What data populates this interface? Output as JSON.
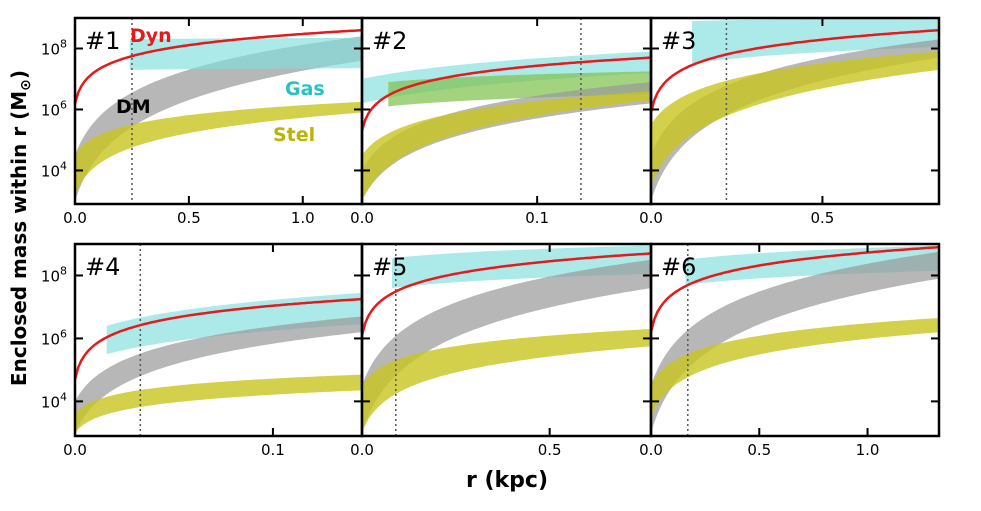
{
  "figure": {
    "ylabel": "Enclosed mass within r (M",
    "ylabel_sub": "⊙",
    "ylabel_close": ")",
    "xlabel": "r (kpc)"
  },
  "colors": {
    "dyn": "#e41a1c",
    "dm": "#999999",
    "gas": "#7fdedd",
    "stel": "#c8c41e",
    "gas_green": "#7dc04a",
    "frame": "#000000"
  },
  "legend": {
    "dyn": "Dyn",
    "dm": "DM",
    "gas": "Gas",
    "stel": "Stel"
  },
  "chart_data": [
    {
      "type": "area",
      "panel": "#1",
      "xlim": [
        0,
        1.26
      ],
      "ylim_log10": [
        2.9,
        9.0
      ],
      "xticks": [
        0.0,
        0.5,
        1.0
      ],
      "xtick_labels": [
        "0.0",
        "0.5",
        "1.0"
      ],
      "yticks_log10": [
        4,
        6,
        8
      ],
      "ytick_labels": [
        "10",
        "10",
        "10"
      ],
      "ytick_exp": [
        "4",
        "6",
        "8"
      ],
      "vline": 0.25,
      "series": [
        {
          "name": "Dyn",
          "kind": "line",
          "log_lo": 6.2,
          "log_hi": 8.6,
          "start": 0.0
        },
        {
          "name": "DM",
          "kind": "band",
          "lo_start": 3.0,
          "lo_end": 7.6,
          "hi_start": 4.5,
          "hi_end": 8.4,
          "start": 0.0,
          "k": 0.05
        },
        {
          "name": "Gas",
          "kind": "band",
          "lo_start": 7.3,
          "lo_end": 7.35,
          "hi_start": 8.3,
          "hi_end": 8.35,
          "start": 0.24,
          "k": 0.3
        },
        {
          "name": "Stel",
          "kind": "band",
          "lo_start": 3.2,
          "lo_end": 5.9,
          "hi_start": 4.5,
          "hi_end": 6.25,
          "start": 0.0,
          "k": 0.03
        }
      ]
    },
    {
      "type": "area",
      "panel": "#2",
      "xlim": [
        0,
        0.165
      ],
      "ylim_log10": [
        2.9,
        9.0
      ],
      "xticks": [
        0.0,
        0.1
      ],
      "xtick_labels": [
        "0.0",
        "0.1"
      ],
      "yticks_log10": [
        4,
        6,
        8
      ],
      "ytick_labels": [
        "10",
        "10",
        "10"
      ],
      "ytick_exp": [
        "4",
        "6",
        "8"
      ],
      "vline": 0.125,
      "series": [
        {
          "name": "Dyn",
          "kind": "line",
          "log_lo": 5.3,
          "log_hi": 7.7,
          "start": 0.0
        },
        {
          "name": "Gas",
          "kind": "band",
          "lo_start": 6.2,
          "lo_end": 7.2,
          "hi_start": 7.0,
          "hi_end": 7.9,
          "start": 0.0,
          "k": 0.3
        },
        {
          "name": "Gas (green)",
          "kind": "band",
          "lo_start": 6.1,
          "lo_end": 6.5,
          "hi_start": 6.9,
          "hi_end": 7.25,
          "start": 0.015,
          "k": 0.3
        },
        {
          "name": "DM",
          "kind": "band",
          "lo_start": 3.0,
          "lo_end": 6.2,
          "hi_start": 4.0,
          "hi_end": 6.9,
          "start": 0.0,
          "k": 0.05
        },
        {
          "name": "Stel",
          "kind": "band",
          "lo_start": 3.0,
          "lo_end": 6.3,
          "hi_start": 4.5,
          "hi_end": 6.6,
          "start": 0.0,
          "k": 0.05
        }
      ]
    },
    {
      "type": "area",
      "panel": "#3",
      "xlim": [
        0,
        0.84
      ],
      "ylim_log10": [
        2.9,
        9.0
      ],
      "xticks": [
        0.0,
        0.5
      ],
      "xtick_labels": [
        "0.0",
        "0.5"
      ],
      "yticks_log10": [
        4,
        6,
        8
      ],
      "ytick_labels": [
        "10",
        "10",
        "10"
      ],
      "ytick_exp": [
        "4",
        "6",
        "8"
      ],
      "vline": 0.22,
      "series": [
        {
          "name": "Dyn",
          "kind": "line",
          "log_lo": 5.9,
          "log_hi": 8.6,
          "start": 0.0
        },
        {
          "name": "Gas",
          "kind": "band",
          "lo_start": 7.5,
          "lo_end": 8.05,
          "hi_start": 8.9,
          "hi_end": 9.0,
          "start": 0.12,
          "k": 0.3
        },
        {
          "name": "DM",
          "kind": "band",
          "lo_start": 3.0,
          "lo_end": 7.7,
          "hi_start": 4.5,
          "hi_end": 8.3,
          "start": 0.0,
          "k": 0.05
        },
        {
          "name": "Stel",
          "kind": "band",
          "lo_start": 3.5,
          "lo_end": 7.3,
          "hi_start": 5.5,
          "hi_end": 7.9,
          "start": 0.0,
          "k": 0.05
        }
      ]
    },
    {
      "type": "area",
      "panel": "#4",
      "xlim": [
        0,
        0.145
      ],
      "ylim_log10": [
        2.9,
        9.0
      ],
      "xticks": [
        0.0,
        0.1
      ],
      "xtick_labels": [
        "0.0",
        "0.1"
      ],
      "yticks_log10": [
        4,
        6,
        8
      ],
      "ytick_labels": [
        "10",
        "10",
        "10"
      ],
      "ytick_exp": [
        "4",
        "6",
        "8"
      ],
      "vline": 0.033,
      "series": [
        {
          "name": "Dyn",
          "kind": "line",
          "log_lo": 4.7,
          "log_hi": 7.25,
          "start": 0.0
        },
        {
          "name": "Gas",
          "kind": "band",
          "lo_start": 5.5,
          "lo_end": 6.45,
          "hi_start": 6.4,
          "hi_end": 7.45,
          "start": 0.016,
          "k": 0.3
        },
        {
          "name": "DM",
          "kind": "band",
          "lo_start": 3.0,
          "lo_end": 6.2,
          "hi_start": 4.0,
          "hi_end": 6.7,
          "start": 0.0,
          "k": 0.05
        },
        {
          "name": "Stel",
          "kind": "band",
          "lo_start": 3.0,
          "lo_end": 4.35,
          "hi_start": 3.6,
          "hi_end": 4.85,
          "start": 0.0,
          "k": 0.03
        }
      ]
    },
    {
      "type": "area",
      "panel": "#5",
      "xlim": [
        0,
        0.77
      ],
      "ylim_log10": [
        2.9,
        9.0
      ],
      "xticks": [
        0.0,
        0.5
      ],
      "xtick_labels": [
        "0.0",
        "0.5"
      ],
      "yticks_log10": [
        4,
        6,
        8
      ],
      "ytick_labels": [
        "10",
        "10",
        "10"
      ],
      "ytick_exp": [
        "4",
        "6",
        "8"
      ],
      "vline": 0.09,
      "series": [
        {
          "name": "Dyn",
          "kind": "line",
          "log_lo": 6.1,
          "log_hi": 8.7,
          "start": 0.0
        },
        {
          "name": "Gas",
          "kind": "band",
          "lo_start": 7.6,
          "lo_end": 8.05,
          "hi_start": 8.55,
          "hi_end": 8.95,
          "start": 0.08,
          "k": 0.3
        },
        {
          "name": "DM",
          "kind": "band",
          "lo_start": 3.0,
          "lo_end": 7.6,
          "hi_start": 4.5,
          "hi_end": 8.5,
          "start": 0.0,
          "k": 0.05
        },
        {
          "name": "Stel",
          "kind": "band",
          "lo_start": 3.0,
          "lo_end": 5.75,
          "hi_start": 4.5,
          "hi_end": 6.3,
          "start": 0.0,
          "k": 0.03
        }
      ]
    },
    {
      "type": "area",
      "panel": "#6",
      "xlim": [
        0,
        1.33
      ],
      "ylim_log10": [
        2.9,
        9.0
      ],
      "xticks": [
        0.0,
        0.5,
        1.0
      ],
      "xtick_labels": [
        "0.0",
        "0.5",
        "1.0"
      ],
      "yticks_log10": [
        4,
        6,
        8
      ],
      "ytick_labels": [
        "10",
        "10",
        "10"
      ],
      "ytick_exp": [
        "4",
        "6",
        "8"
      ],
      "vline": 0.17,
      "series": [
        {
          "name": "Dyn",
          "kind": "line",
          "log_lo": 6.2,
          "log_hi": 8.9,
          "start": 0.0
        },
        {
          "name": "Gas",
          "kind": "band",
          "lo_start": 7.7,
          "lo_end": 8.15,
          "hi_start": 8.5,
          "hi_end": 8.95,
          "start": 0.16,
          "k": 0.3
        },
        {
          "name": "DM",
          "kind": "band",
          "lo_start": 3.0,
          "lo_end": 7.9,
          "hi_start": 4.5,
          "hi_end": 8.75,
          "start": 0.0,
          "k": 0.05
        },
        {
          "name": "Stel",
          "kind": "band",
          "lo_start": 3.5,
          "lo_end": 6.2,
          "hi_start": 4.5,
          "hi_end": 6.65,
          "start": 0.0,
          "k": 0.03
        }
      ]
    }
  ]
}
